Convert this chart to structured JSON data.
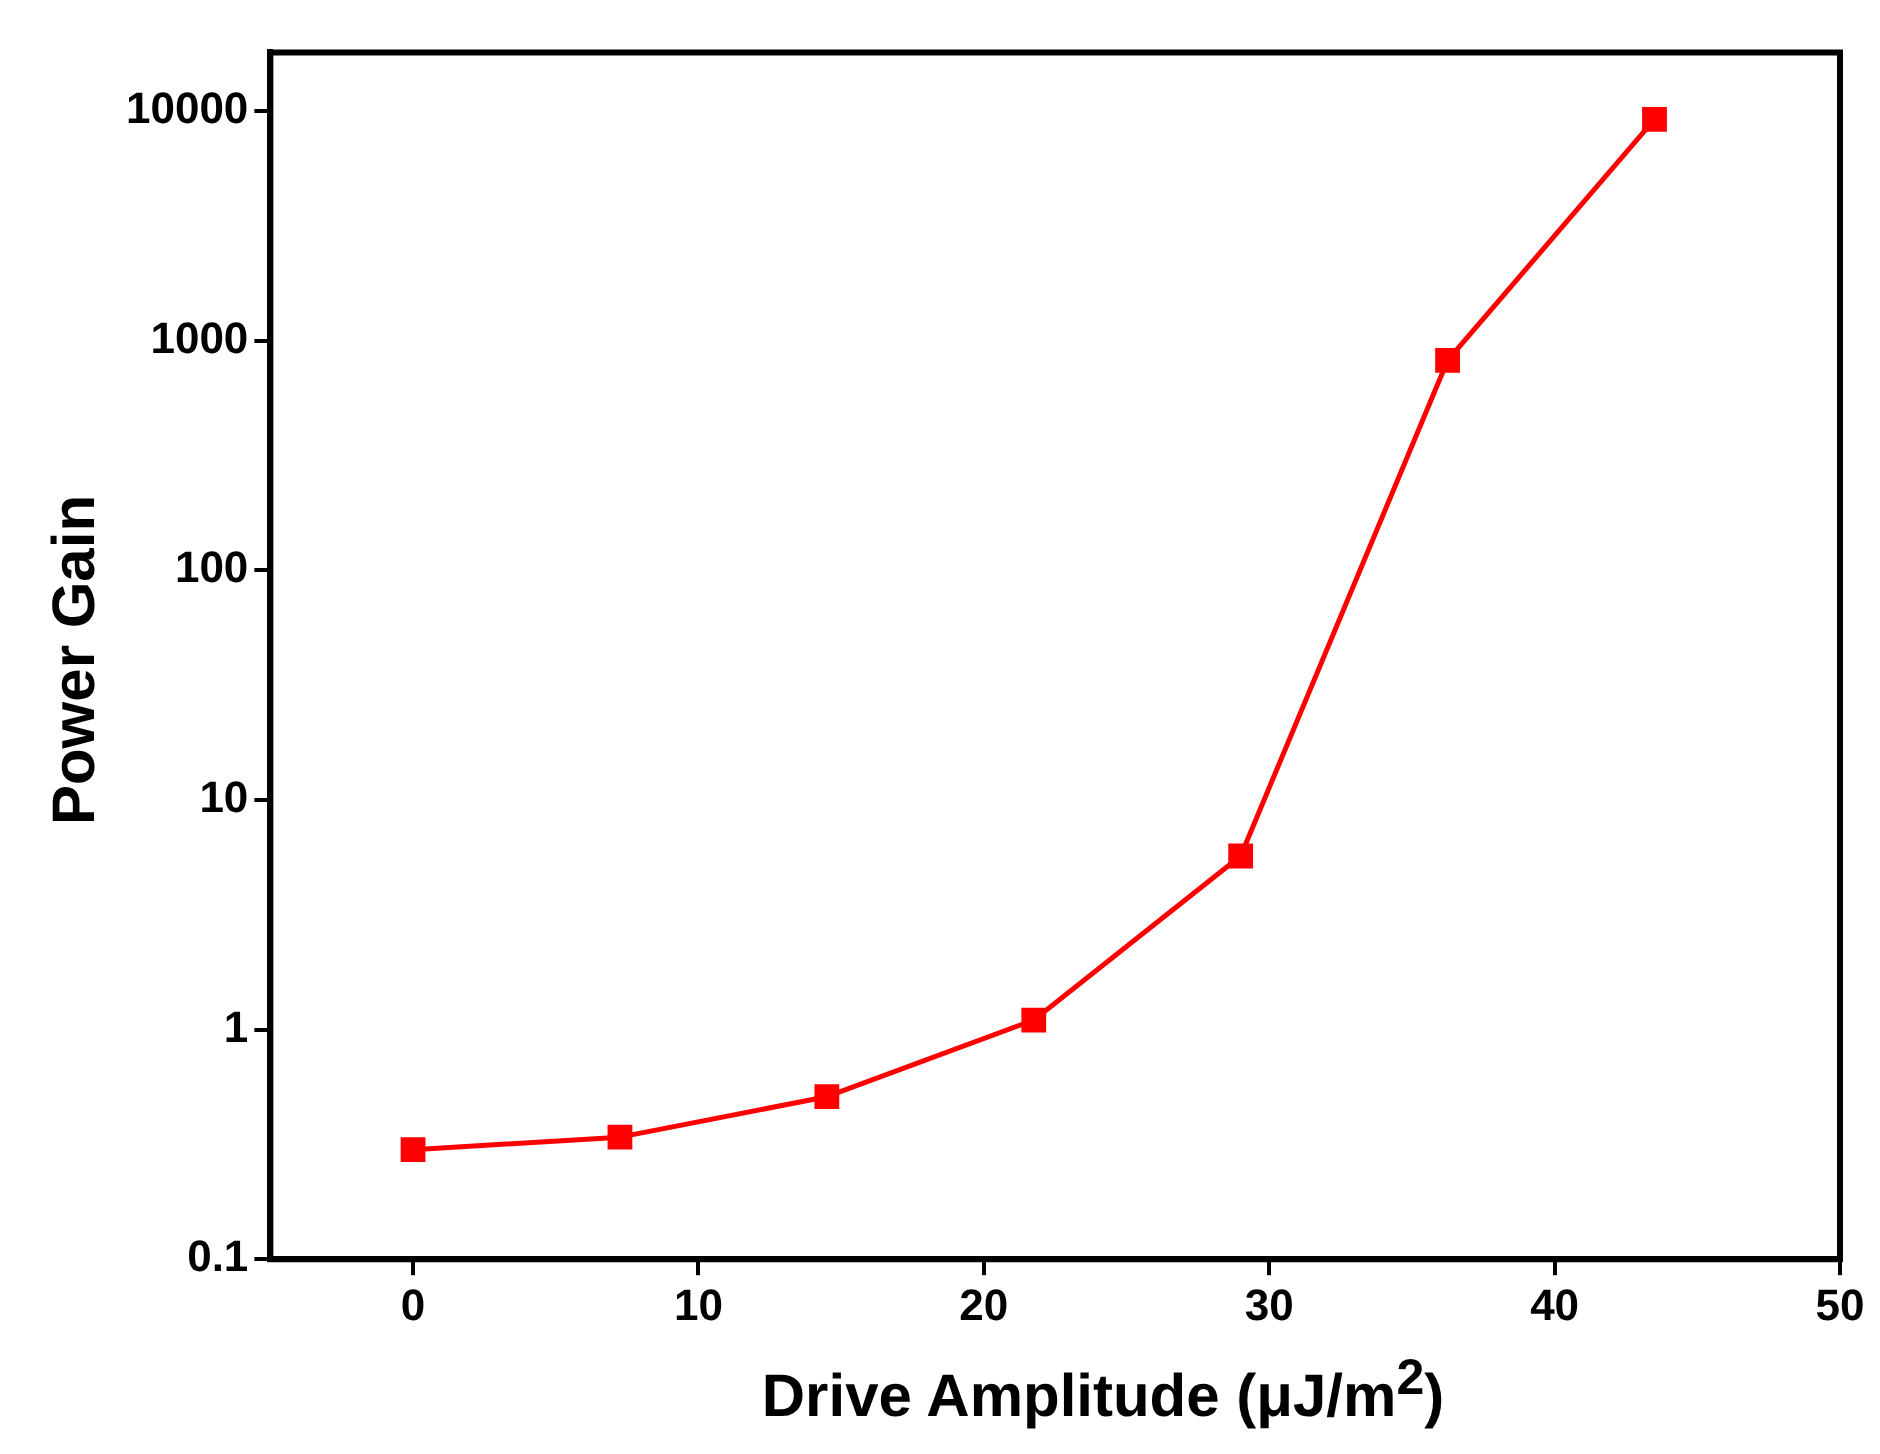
{
  "chart_data": {
    "type": "line",
    "xlabel": "Drive Amplitude (μJ/m$^{2}$)",
    "ylabel": "Power Gain",
    "x": [
      0,
      7.25,
      14.5,
      21.75,
      29,
      36.25,
      43.5
    ],
    "series": [
      {
        "color": "#ff0000",
        "values": [
          0.3,
          0.34,
          0.51,
          1.1,
          5.7,
          820,
          9200
        ]
      }
    ],
    "xlim": [
      -5,
      50
    ],
    "xticks": [
      0,
      10,
      20,
      30,
      40,
      50
    ],
    "ylim": [
      0.1,
      18000
    ],
    "yticks": [
      0.1,
      1,
      10,
      100,
      1000,
      10000
    ],
    "log": "y",
    "grid": false,
    "legend": false,
    "marker": "square",
    "line_style": "solid"
  }
}
